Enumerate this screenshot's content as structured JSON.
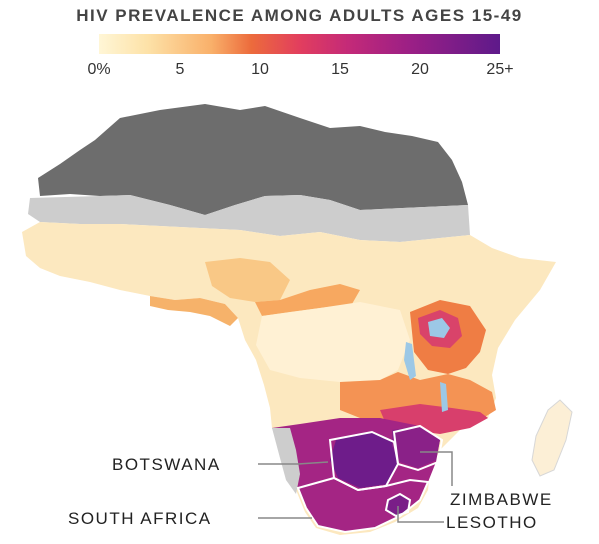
{
  "title": "HIV PREVALENCE AMONG ADULTS AGES 15-49",
  "legend": {
    "ticks": [
      "0%",
      "5",
      "10",
      "15",
      "20",
      "25+"
    ],
    "colors": [
      "#fff6d6",
      "#fde2a8",
      "#f9b06a",
      "#ec6b3c",
      "#e23e5e",
      "#c42a78",
      "#9a1f86",
      "#5e1a8a"
    ]
  },
  "labels": {
    "botswana": "BOTSWANA",
    "zimbabwe": "ZIMBABWE",
    "south_africa": "SOUTH AFRICA",
    "lesotho": "LESOTHO"
  },
  "colors": {
    "no_data_dark": "#6d6d6d",
    "no_data_light": "#cdcdcd",
    "water": "#9cc8e6"
  }
}
